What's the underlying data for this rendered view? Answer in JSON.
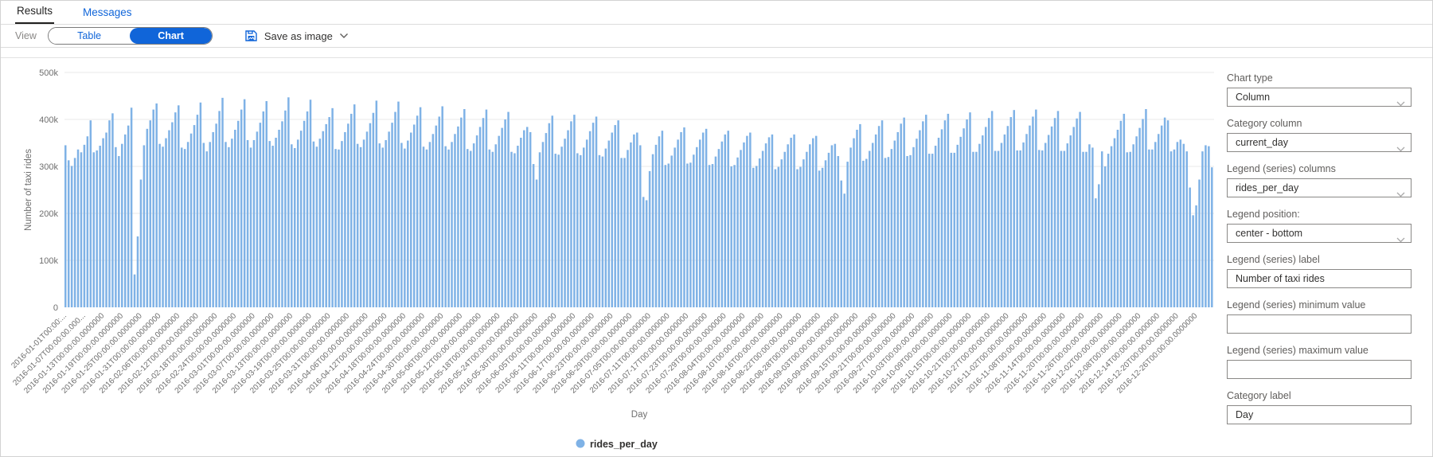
{
  "tabs": {
    "results": "Results",
    "messages": "Messages"
  },
  "toolbar": {
    "view_label": "View",
    "table_label": "Table",
    "chart_label": "Chart",
    "save_as_image_label": "Save as image"
  },
  "settings_panel": {
    "fields": [
      {
        "label": "Chart type",
        "value": "Column",
        "type": "dropdown"
      },
      {
        "label": "Category column",
        "value": "current_day",
        "type": "dropdown"
      },
      {
        "label": "Legend (series) columns",
        "value": "rides_per_day",
        "type": "dropdown"
      },
      {
        "label": "Legend position:",
        "value": "center - bottom",
        "type": "dropdown"
      },
      {
        "label": "Legend (series) label",
        "value": "Number of taxi rides",
        "type": "input"
      },
      {
        "label": "Legend (series) minimum value",
        "value": "",
        "type": "input"
      },
      {
        "label": "Legend (series) maximum value",
        "value": "",
        "type": "input"
      },
      {
        "label": "Category label",
        "value": "Day",
        "type": "input"
      }
    ]
  },
  "colors": {
    "accent": "#1065d9",
    "bar": "#7FB2E6",
    "grid": "#e8e8e8",
    "tick_text": "#6e6e6e",
    "border": "#dcdcdc"
  },
  "chart_data": {
    "type": "bar",
    "title": "",
    "xlabel": "Day",
    "ylabel": "Number of taxi rides",
    "ylim": [
      0,
      500000
    ],
    "grid": true,
    "y_tick_labels": [
      "0",
      "100k",
      "200k",
      "300k",
      "400k",
      "500k"
    ],
    "series_name": "rides_per_day",
    "legend_position": "center-bottom",
    "bar_color": "#7FB2E6",
    "start_date": "2016-01-01",
    "cadence": "daily",
    "x_tick_every": 6,
    "x_tick_labels": [
      "2016-01-01T00:00:...",
      "2016-01-07T00:00:00.000...",
      "2016-01-13T00:00:00.0000000",
      "2016-01-19T00:00:00.0000000",
      "2016-01-25T00:00:00.0000000",
      "2016-01-31T00:00:00.0000000",
      "2016-02-06T00:00:00.0000000",
      "2016-02-12T00:00:00.0000000",
      "2016-02-18T00:00:00.0000000",
      "2016-02-24T00:00:00.0000000",
      "2016-03-01T00:00:00.0000000",
      "2016-03-07T00:00:00.0000000",
      "2016-03-13T00:00:00.0000000",
      "2016-03-19T00:00:00.0000000",
      "2016-03-25T00:00:00.0000000",
      "2016-03-31T00:00:00.0000000",
      "2016-04-06T00:00:00.0000000",
      "2016-04-12T00:00:00.0000000",
      "2016-04-18T00:00:00.0000000",
      "2016-04-24T00:00:00.0000000",
      "2016-04-30T00:00:00.0000000",
      "2016-05-06T00:00:00.0000000",
      "2016-05-12T00:00:00.0000000",
      "2016-05-18T00:00:00.0000000",
      "2016-05-24T00:00:00.0000000",
      "2016-05-30T00:00:00.0000000",
      "2016-06-05T00:00:00.0000000",
      "2016-06-11T00:00:00.0000000",
      "2016-06-17T00:00:00.0000000",
      "2016-06-23T00:00:00.0000000",
      "2016-06-29T00:00:00.0000000",
      "2016-07-05T00:00:00.0000000",
      "2016-07-11T00:00:00.0000000",
      "2016-07-17T00:00:00.0000000",
      "2016-07-23T00:00:00.0000000",
      "2016-07-29T00:00:00.0000000",
      "2016-08-04T00:00:00.0000000",
      "2016-08-10T00:00:00.0000000",
      "2016-08-16T00:00:00.0000000",
      "2016-08-22T00:00:00.0000000",
      "2016-08-28T00:00:00.0000000",
      "2016-09-03T00:00:00.0000000",
      "2016-09-09T00:00:00.0000000",
      "2016-09-15T00:00:00.0000000",
      "2016-09-21T00:00:00.0000000",
      "2016-09-27T00:00:00.0000000",
      "2016-10-03T00:00:00.0000000",
      "2016-10-09T00:00:00.0000000",
      "2016-10-15T00:00:00.0000000",
      "2016-10-21T00:00:00.0000000",
      "2016-10-27T00:00:00.0000000",
      "2016-11-02T00:00:00.0000000",
      "2016-11-08T00:00:00.0000000",
      "2016-11-14T00:00:00.0000000",
      "2016-11-20T00:00:00.0000000",
      "2016-11-26T00:00:00.0000000",
      "2016-12-02T00:00:00.0000000",
      "2016-12-08T00:00:00.0000000",
      "2016-12-14T00:00:00.0000000",
      "2016-12-20T00:00:00.0000000",
      "2016-12-26T00:00:00.0000000"
    ],
    "values": [
      345000,
      313000,
      301000,
      318000,
      336000,
      330000,
      346000,
      364000,
      398000,
      330000,
      334000,
      344000,
      360000,
      372000,
      398000,
      413000,
      341000,
      322000,
      348000,
      368000,
      387000,
      425000,
      70000,
      151000,
      272000,
      345000,
      380000,
      398000,
      421000,
      434000,
      348000,
      342000,
      360000,
      377000,
      394000,
      415000,
      430000,
      340000,
      337000,
      352000,
      370000,
      388000,
      410000,
      436000,
      350000,
      332000,
      352000,
      373000,
      391000,
      418000,
      446000,
      352000,
      341000,
      359000,
      378000,
      397000,
      421000,
      443000,
      356000,
      340000,
      356000,
      374000,
      393000,
      417000,
      439000,
      354000,
      344000,
      361000,
      378000,
      396000,
      419000,
      447000,
      347000,
      339000,
      357000,
      376000,
      397000,
      417000,
      442000,
      353000,
      342000,
      359000,
      375000,
      390000,
      405000,
      424000,
      337000,
      336000,
      354000,
      373000,
      391000,
      412000,
      432000,
      348000,
      341000,
      357000,
      374000,
      392000,
      414000,
      440000,
      349000,
      340000,
      356000,
      374000,
      393000,
      416000,
      438000,
      350000,
      338000,
      355000,
      372000,
      389000,
      408000,
      426000,
      342000,
      336000,
      352000,
      369000,
      387000,
      406000,
      428000,
      343000,
      336000,
      352000,
      369000,
      385000,
      404000,
      422000,
      337000,
      333000,
      349000,
      366000,
      384000,
      403000,
      421000,
      336000,
      331000,
      347000,
      365000,
      382000,
      400000,
      416000,
      331000,
      328000,
      344000,
      361000,
      377000,
      384000,
      373000,
      305000,
      272000,
      330000,
      352000,
      371000,
      392000,
      408000,
      327000,
      325000,
      342000,
      359000,
      377000,
      396000,
      410000,
      328000,
      324000,
      340000,
      357000,
      375000,
      393000,
      406000,
      324000,
      321000,
      338000,
      355000,
      372000,
      388000,
      398000,
      318000,
      318000,
      335000,
      351000,
      368000,
      372000,
      345000,
      235000,
      228000,
      290000,
      326000,
      346000,
      364000,
      376000,
      303000,
      306000,
      323000,
      340000,
      357000,
      373000,
      383000,
      306000,
      308000,
      325000,
      341000,
      357000,
      372000,
      380000,
      303000,
      305000,
      321000,
      337000,
      353000,
      368000,
      376000,
      300000,
      303000,
      319000,
      335000,
      351000,
      365000,
      372000,
      297000,
      301000,
      317000,
      333000,
      349000,
      362000,
      368000,
      294000,
      299000,
      315000,
      331000,
      347000,
      361000,
      368000,
      294000,
      299000,
      315000,
      331000,
      347000,
      360000,
      365000,
      291000,
      297000,
      313000,
      329000,
      345000,
      348000,
      322000,
      270000,
      242000,
      310000,
      340000,
      360000,
      378000,
      390000,
      312000,
      316000,
      333000,
      350000,
      368000,
      386000,
      398000,
      318000,
      320000,
      337000,
      355000,
      373000,
      391000,
      404000,
      322000,
      324000,
      341000,
      359000,
      377000,
      396000,
      410000,
      327000,
      327000,
      344000,
      361000,
      379000,
      398000,
      412000,
      329000,
      329000,
      346000,
      363000,
      381000,
      400000,
      415000,
      331000,
      331000,
      348000,
      366000,
      384000,
      403000,
      418000,
      333000,
      333000,
      350000,
      368000,
      386000,
      405000,
      420000,
      334000,
      334000,
      351000,
      369000,
      387000,
      406000,
      421000,
      335000,
      334000,
      350000,
      367000,
      385000,
      403000,
      418000,
      333000,
      333000,
      349000,
      366000,
      384000,
      402000,
      416000,
      331000,
      331000,
      347000,
      340000,
      232000,
      262000,
      332000,
      300000,
      327000,
      343000,
      360000,
      378000,
      397000,
      412000,
      330000,
      331000,
      347000,
      364000,
      382000,
      401000,
      422000,
      336000,
      336000,
      352000,
      369000,
      387000,
      404000,
      398000,
      332000,
      336000,
      352000,
      357000,
      348000,
      332000,
      255000,
      196000,
      217000,
      272000,
      332000,
      345000,
      343000,
      298000
    ]
  }
}
